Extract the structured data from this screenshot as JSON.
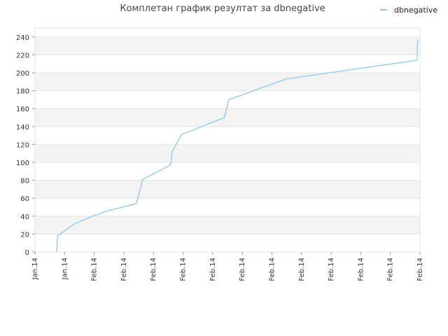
{
  "chart_data": {
    "type": "line",
    "title": "Комплетан график резултат за dbnegative",
    "xlabel": "",
    "ylabel": "",
    "ylim": [
      0,
      250
    ],
    "yticks": [
      0,
      20,
      40,
      60,
      80,
      100,
      120,
      140,
      160,
      180,
      200,
      220,
      240
    ],
    "xlim": [
      0,
      13
    ],
    "xticks": [
      {
        "x": 0,
        "label": "Jan.14"
      },
      {
        "x": 1,
        "label": "Jan.14"
      },
      {
        "x": 2,
        "label": "Feb.14"
      },
      {
        "x": 3,
        "label": "Feb.14"
      },
      {
        "x": 4,
        "label": "Feb.14"
      },
      {
        "x": 5,
        "label": "Feb.14"
      },
      {
        "x": 6,
        "label": "Feb.14"
      },
      {
        "x": 7,
        "label": "Feb.14"
      },
      {
        "x": 8,
        "label": "Feb.14"
      },
      {
        "x": 9,
        "label": "Feb.14"
      },
      {
        "x": 10,
        "label": "Feb.14"
      },
      {
        "x": 11,
        "label": "Feb.14"
      },
      {
        "x": 12,
        "label": "Feb.14"
      },
      {
        "x": 13,
        "label": "Feb.14"
      }
    ],
    "grid": true,
    "legend": "top-right",
    "series": [
      {
        "name": "dbnegative",
        "color": "#8ec8ea",
        "x": [
          0.72,
          0.74,
          0.76,
          1.31,
          1.94,
          2.21,
          2.35,
          3.42,
          3.64,
          4.56,
          4.59,
          4.63,
          4.95,
          6.39,
          6.55,
          8.46,
          12.9,
          12.91,
          12.93
        ],
        "y": [
          0,
          5,
          18,
          31,
          40,
          43,
          45,
          54,
          81,
          97,
          100,
          112,
          131,
          150,
          170,
          193,
          214,
          231,
          237
        ]
      }
    ]
  }
}
